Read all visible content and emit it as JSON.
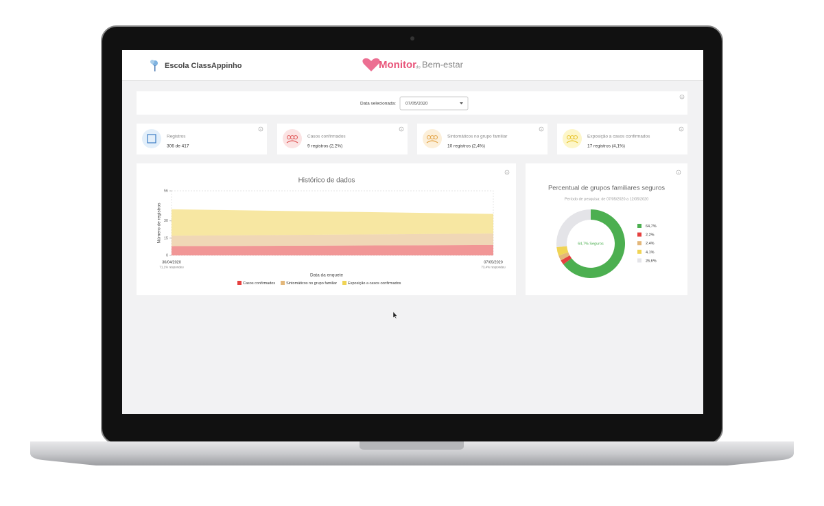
{
  "header": {
    "school": "Escola ClassAppinho",
    "logo_main": "Monitor",
    "logo_small": "do",
    "logo_end": "Bem-estar"
  },
  "filter": {
    "label": "Data selecionada:",
    "value": "07/05/2020"
  },
  "cards": [
    {
      "title": "Registros",
      "value": "306 de 417"
    },
    {
      "title": "Casos confirmados",
      "value": "9 registros (2,2%)"
    },
    {
      "title": "Sintomáticos no grupo familiar",
      "value": "10 registros (2,4%)"
    },
    {
      "title": "Exposição a casos confirmados",
      "value": "17 registros (4,1%)"
    }
  ],
  "chart_data": [
    {
      "type": "area",
      "title": "Histórico de dados",
      "y_label": "Número de registros",
      "x_label": "Data da enquete",
      "categories": [
        "30/04/2020",
        "07/05/2020"
      ],
      "category_notes": [
        "71,1% respondeu",
        "73,4% respondeu"
      ],
      "ylim": [
        0,
        56
      ],
      "yticks": [
        0,
        15,
        30,
        56
      ],
      "stacked": true,
      "grid": false,
      "series": [
        {
          "name": "Casos confirmados",
          "color": "#e5403f",
          "values": [
            8,
            9
          ]
        },
        {
          "name": "Sintomáticos no grupo familiar",
          "color": "#e3b77a",
          "values": [
            9,
            10
          ]
        },
        {
          "name": "Exposição a casos confirmados",
          "color": "#f0d455",
          "values": [
            23,
            17
          ]
        }
      ]
    },
    {
      "type": "pie",
      "title": "Percentual de grupos familiares seguros",
      "subtitle": "Período de pesquisa: de 07/05/2020 a 12/05/2020",
      "center_label": "64,7% Seguros",
      "donut": true,
      "values": [
        64.7,
        2.2,
        2.4,
        4.1,
        26.6
      ],
      "value_labels": [
        "64,7%",
        "2,2%",
        "2,4%",
        "4,1%",
        "26,6%"
      ],
      "colors": [
        "#4caf50",
        "#e5403f",
        "#e3b77a",
        "#f0d455",
        "#e4e4e8"
      ]
    }
  ]
}
